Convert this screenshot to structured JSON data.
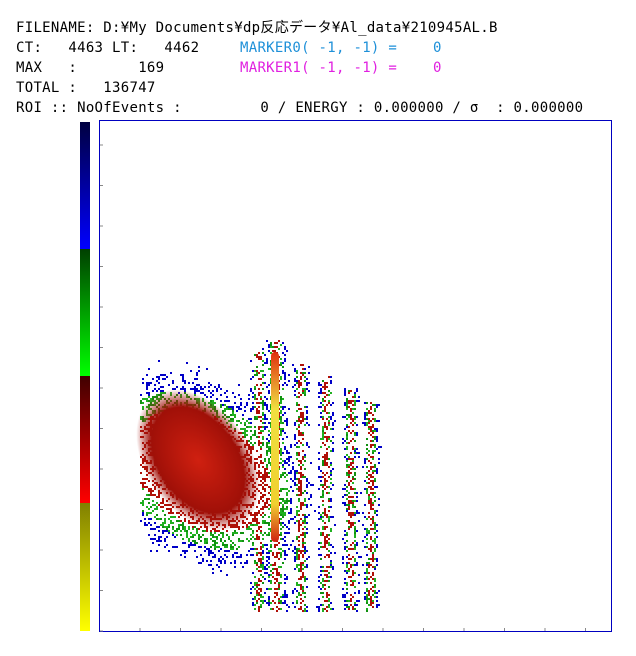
{
  "header": {
    "filename": "FILENAME: D:¥My Documents¥dp反応データ¥Al_data¥210945AL.B",
    "ct_line": "CT:   4463 LT:   4462",
    "max_line": "MAX   :       169",
    "total_line": "TOTAL :   136747",
    "roi_line": "ROI :: NoOfEvents :         0 / ENERGY : 0.000000 / σ  : 0.000000",
    "markers": [
      {
        "label": "MARKER0( -1, -1) =",
        "value": "0",
        "color": "#1e90d8"
      },
      {
        "label": "MARKER1( -1, -1) =",
        "value": "0",
        "color": "#e020e0"
      }
    ]
  }
}
